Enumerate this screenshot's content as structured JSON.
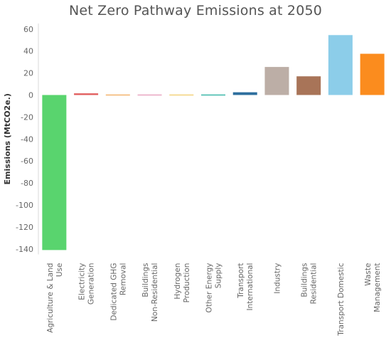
{
  "chart_data": {
    "type": "bar",
    "title": "Net Zero Pathway Emissions at 2050",
    "xlabel": "",
    "ylabel": "Emissions (MtCO2e.)",
    "ylim": [
      -145,
      65
    ],
    "yticks": [
      60,
      40,
      20,
      0,
      -20,
      -40,
      -60,
      -80,
      -100,
      -120,
      -140
    ],
    "grid": false,
    "categories": [
      [
        "Agriculture & Land",
        "Use"
      ],
      [
        "Electricity",
        "Generation"
      ],
      [
        "Dedicated GHG",
        "Removal"
      ],
      [
        "Buildings",
        "Non-Residential"
      ],
      [
        "Hydrogen",
        "Production"
      ],
      [
        "Other Energy",
        "Supply"
      ],
      [
        "Transport",
        "International"
      ],
      [
        "Industry"
      ],
      [
        "Buildings",
        "Residential"
      ],
      [
        "Transport Domestic"
      ],
      [
        "Waste",
        "Management"
      ]
    ],
    "values": [
      -141,
      1.5,
      -0.5,
      -0.5,
      -0.5,
      0.8,
      2.5,
      25.5,
      17,
      54.5,
      37.5
    ],
    "colors": [
      "#59d46e",
      "#e05a5a",
      "#f2b36b",
      "#e8a6c0",
      "#f2d27a",
      "#3bb7a8",
      "#2e6f9e",
      "#bcaea6",
      "#a87458",
      "#8ccde9",
      "#fb8c1e"
    ]
  }
}
